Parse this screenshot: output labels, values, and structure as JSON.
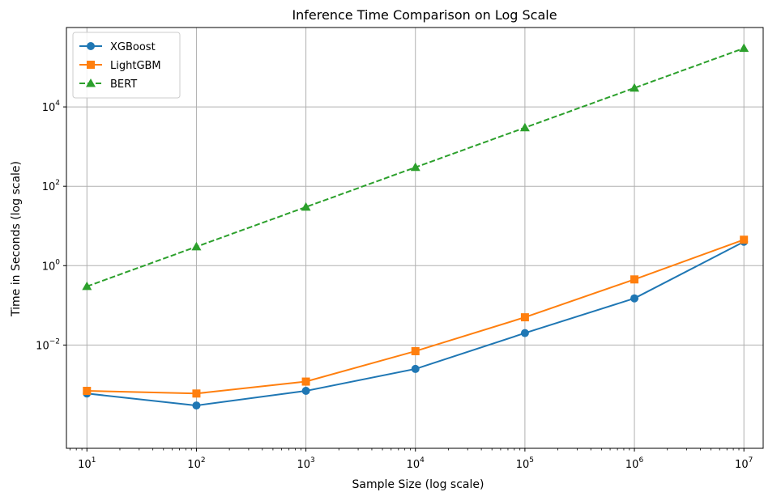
{
  "chart_data": {
    "type": "line",
    "title": "Inference Time Comparison on Log Scale",
    "xlabel": "Sample Size (log scale)",
    "ylabel": "Time in Seconds (log scale)",
    "xscale": "log",
    "yscale": "log",
    "xlim": [
      6.5,
      15000000
    ],
    "ylim": [
      2.5e-05,
      1000000
    ],
    "grid": true,
    "legend_position": "top-left",
    "x": [
      10,
      100,
      1000,
      10000,
      100000,
      1000000,
      10000000
    ],
    "x_ticks": [
      {
        "value": 10,
        "base": "10",
        "exp": "1"
      },
      {
        "value": 100,
        "base": "10",
        "exp": "2"
      },
      {
        "value": 1000,
        "base": "10",
        "exp": "3"
      },
      {
        "value": 10000,
        "base": "10",
        "exp": "4"
      },
      {
        "value": 100000,
        "base": "10",
        "exp": "5"
      },
      {
        "value": 1000000,
        "base": "10",
        "exp": "6"
      },
      {
        "value": 10000000,
        "base": "10",
        "exp": "7"
      }
    ],
    "y_ticks": [
      {
        "value": 0.01,
        "base": "10",
        "exp": "−2"
      },
      {
        "value": 1,
        "base": "10",
        "exp": "0"
      },
      {
        "value": 100,
        "base": "10",
        "exp": "2"
      },
      {
        "value": 10000,
        "base": "10",
        "exp": "4"
      }
    ],
    "series": [
      {
        "name": "XGBoost",
        "color": "#1f77b4",
        "marker": "circle",
        "linestyle": "solid",
        "values": [
          0.0006,
          0.0003,
          0.0007,
          0.0025,
          0.02,
          0.15,
          4.0
        ]
      },
      {
        "name": "LightGBM",
        "color": "#ff7f0e",
        "marker": "square",
        "linestyle": "solid",
        "values": [
          0.0007,
          0.0006,
          0.0012,
          0.007,
          0.05,
          0.45,
          4.5
        ]
      },
      {
        "name": "BERT",
        "color": "#2ca02c",
        "marker": "triangle",
        "linestyle": "dashed",
        "values": [
          0.3,
          3.0,
          30,
          300,
          3000,
          30000,
          300000
        ]
      }
    ]
  }
}
